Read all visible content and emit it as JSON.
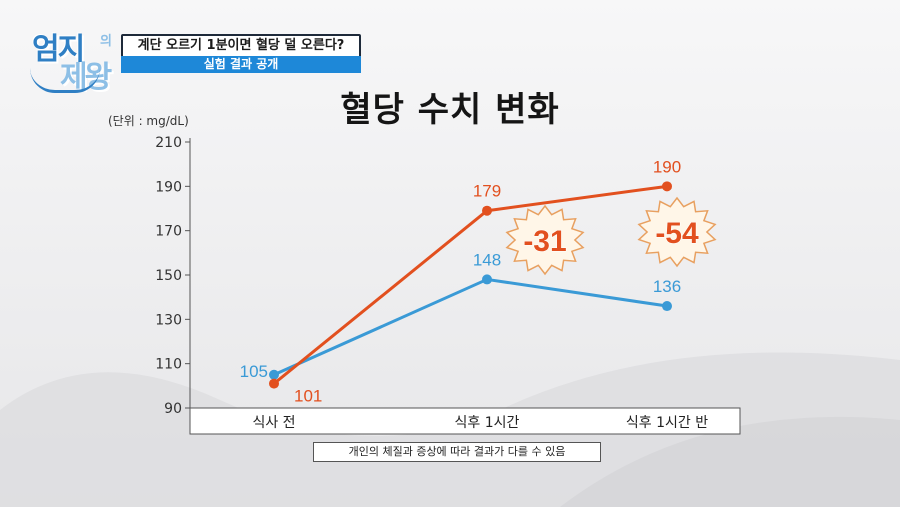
{
  "header": {
    "logo_text_1": "엄지",
    "logo_text_small": "의",
    "logo_text_2": "제왕",
    "banner_title": "계단 오르기 1분이면 혈당 덜 오른다?",
    "banner_subtitle": "실험 결과 공개"
  },
  "footer_note": "개인의 체질과 증상에 따라 결과가 다를 수 있음",
  "colors": {
    "orange_series": "#e2501f",
    "blue_series": "#3a9ad6",
    "axis": "#555555",
    "burst_fill": "#fff6e8",
    "burst_stroke": "#e8a060"
  },
  "chart_data": {
    "type": "line",
    "title": "혈당 수치 변화",
    "unit_label": "(단위 : mg/dL)",
    "categories": [
      "식사 전",
      "식후 1시간",
      "식후 1시간 반"
    ],
    "y_ticks": [
      90,
      110,
      130,
      150,
      170,
      190,
      210
    ],
    "ylim": [
      90,
      210
    ],
    "grid": false,
    "series": [
      {
        "name": "",
        "color": "#e2501f",
        "values": [
          101,
          179,
          190
        ]
      },
      {
        "name": "",
        "color": "#3a9ad6",
        "values": [
          105,
          148,
          136
        ]
      }
    ],
    "annotations": [
      {
        "text": "-31",
        "category_index": 1
      },
      {
        "text": "-54",
        "category_index": 2
      }
    ]
  }
}
